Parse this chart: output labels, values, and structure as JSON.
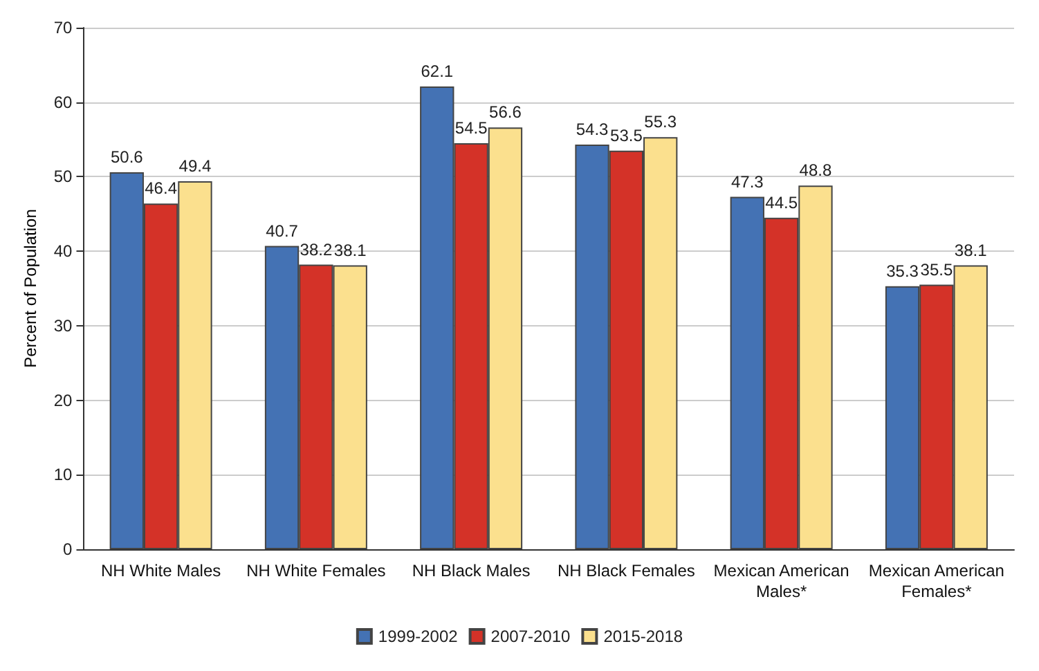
{
  "chart_data": {
    "type": "bar",
    "ylabel": "Percent of Population",
    "categories": [
      "NH White Males",
      "NH White Females",
      "NH Black Males",
      "NH Black Females",
      "Mexican American\nMales*",
      "Mexican American\nFemales*"
    ],
    "series": [
      {
        "name": "1999-2002",
        "color": "#4472b4",
        "values": [
          50.6,
          40.7,
          62.1,
          54.3,
          47.3,
          35.3
        ]
      },
      {
        "name": "2007-2010",
        "color": "#d43228",
        "values": [
          46.4,
          38.2,
          54.5,
          53.5,
          44.5,
          35.5
        ]
      },
      {
        "name": "2015-2018",
        "color": "#fbe08e",
        "values": [
          49.4,
          38.1,
          56.6,
          55.3,
          48.8,
          38.1
        ]
      }
    ],
    "ylim": [
      0,
      70
    ],
    "yticks": [
      0,
      10,
      20,
      30,
      40,
      50,
      60,
      70
    ],
    "grid": "y",
    "legend": "bottom",
    "data_labels": true
  }
}
